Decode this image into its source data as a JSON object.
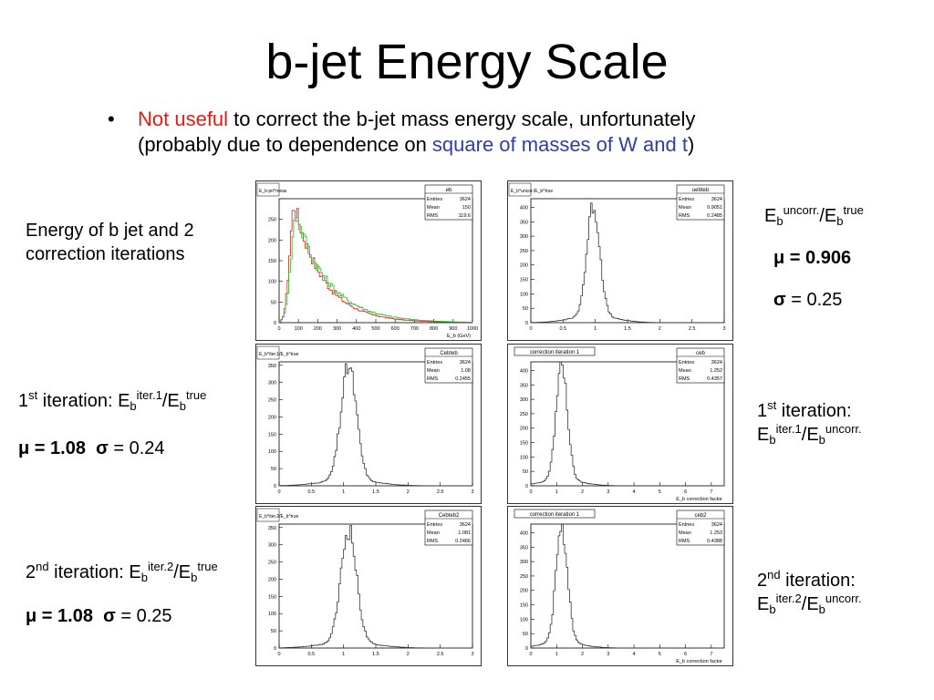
{
  "slide": {
    "title": "b-jet Energy Scale",
    "bullet": {
      "red": "Not useful",
      "part1": " to correct the b-jet mass energy scale, unfortunately",
      "part2": "(probably due to dependence on ",
      "blue": "square of masses of W and t",
      "part3": ")"
    },
    "colors": {
      "highlight_red": "#e8190f",
      "highlight_blue": "#2d3ea8"
    }
  },
  "left_labels": {
    "energy_desc": [
      "Energy of b jet and 2",
      "correction iterations"
    ],
    "iter1": {
      "ordinal": "1",
      "ord_sup": "st",
      "pre": " iteration: E",
      "sub1": "b",
      "sup1": "iter.1",
      "mid": "/E",
      "sub2": "b",
      "sup2": "true"
    },
    "iter1_stats": {
      "mu": "μ = 1.08",
      "sigma_sym": "σ",
      "sigma": " = 0.24"
    },
    "iter2": {
      "ordinal": "2",
      "ord_sup": "nd",
      "pre": " iteration: E",
      "sub1": "b",
      "sup1": "iter.2",
      "mid": "/E",
      "sub2": "b",
      "sup2": "true"
    },
    "iter2_stats": {
      "mu": "μ = 1.08",
      "sigma_sym": "σ",
      "sigma": " = 0.25"
    }
  },
  "right_labels": {
    "ratio": {
      "e": "E",
      "sub1": "b",
      "sup1": "uncorr.",
      "mid": "/E",
      "sub2": "b",
      "sup2": "true"
    },
    "mu": "μ = 0.906",
    "sigma_sym": "σ",
    "sigma": " = 0.25",
    "iter1": {
      "line1_ord": "1",
      "line1_sup": "st",
      "line1_rest": " iteration:",
      "e": "E",
      "sub1": "b",
      "sup1": "iter.1",
      "mid": "/E",
      "sub2": "b",
      "sup2": "uncorr."
    },
    "iter2": {
      "line1_ord": "2",
      "line1_sup": "nd",
      "line1_rest": " iteration:",
      "e": "E",
      "sub1": "b",
      "sup1": "iter.2",
      "mid": "/E",
      "sub2": "b",
      "sup2": "uncorr."
    }
  },
  "chart_data": [
    {
      "type": "histogram",
      "id": "eb",
      "stats": {
        "name": "eb",
        "entries": "3624",
        "mean": "150",
        "rms": "119.6"
      },
      "corner_label": "E_b-jet^meas",
      "xlabel": "E_b (GeV)",
      "x_ticks": [
        0,
        100,
        200,
        300,
        400,
        500,
        600,
        700,
        800,
        900,
        1000
      ],
      "y_ticks": [
        0,
        50,
        100,
        150,
        200,
        250
      ],
      "xlim": [
        0,
        1000
      ],
      "ylim": [
        0,
        300
      ],
      "series": [
        {
          "color": "#cc2222",
          "peak_x": 80,
          "peak_y": 285,
          "width_left": 35,
          "decay": 150
        },
        {
          "color": "#22bb22",
          "peak_x": 90,
          "peak_y": 260,
          "width_left": 40,
          "decay": 170
        }
      ]
    },
    {
      "type": "histogram",
      "id": "uebteb",
      "stats": {
        "name": "uebteb",
        "entries": "3624",
        "mean": "0.9051",
        "rms": "0.2485"
      },
      "corner_label": "E_b^uncor./E_b^true",
      "xlabel": "",
      "x_ticks": [
        0,
        0.5,
        1,
        1.5,
        2,
        2.5,
        3
      ],
      "y_ticks": [
        0,
        50,
        100,
        150,
        200,
        250,
        300,
        350,
        400
      ],
      "xlim": [
        0,
        3
      ],
      "ylim": [
        0,
        430
      ],
      "series": [
        {
          "color": "#333333",
          "mean": 0.97,
          "sigma": 0.1,
          "peak_y": 385,
          "tail": 0.06
        }
      ]
    },
    {
      "type": "histogram",
      "id": "cebteb",
      "stats": {
        "name": "Cebteb",
        "entries": "3624",
        "mean": "1.08",
        "rms": "0.2455"
      },
      "corner_label": "E_b^iter.1/E_b^true",
      "xlabel": "",
      "x_ticks": [
        0,
        0.5,
        1,
        1.5,
        2,
        2.5,
        3
      ],
      "y_ticks": [
        0,
        50,
        100,
        150,
        200,
        250,
        300,
        350
      ],
      "xlim": [
        0,
        3
      ],
      "ylim": [
        0,
        360
      ],
      "series": [
        {
          "color": "#333333",
          "mean": 1.08,
          "sigma": 0.12,
          "peak_y": 330,
          "tail": 0.05
        }
      ]
    },
    {
      "type": "histogram",
      "id": "ceb",
      "title": "correction iteration 1",
      "stats": {
        "name": "ceb",
        "entries": "3624",
        "mean": "1.252",
        "rms": "0.4357"
      },
      "xlabel": "E_b correction factor",
      "x_ticks": [
        0,
        1,
        2,
        3,
        4,
        5,
        6,
        7
      ],
      "y_ticks": [
        0,
        50,
        100,
        150,
        200,
        250,
        300,
        350,
        400
      ],
      "xlim": [
        0,
        7.5
      ],
      "ylim": [
        0,
        430
      ],
      "series": [
        {
          "color": "#333333",
          "mean": 1.2,
          "sigma": 0.22,
          "peak_y": 400,
          "tail": 0.05
        }
      ]
    },
    {
      "type": "histogram",
      "id": "cebteb2",
      "stats": {
        "name": "Cebteb2",
        "entries": "3624",
        "mean": "1.081",
        "rms": "0.2466"
      },
      "corner_label": "E_b^iter.2/E_b^true",
      "xlabel": "",
      "x_ticks": [
        0,
        0.5,
        1,
        1.5,
        2,
        2.5,
        3
      ],
      "y_ticks": [
        0,
        50,
        100,
        150,
        200,
        250,
        300,
        350
      ],
      "xlim": [
        0,
        3
      ],
      "ylim": [
        0,
        360
      ],
      "series": [
        {
          "color": "#333333",
          "mean": 1.08,
          "sigma": 0.12,
          "peak_y": 330,
          "tail": 0.05
        }
      ]
    },
    {
      "type": "histogram",
      "id": "ceb2",
      "title": "correction iteration 1",
      "stats": {
        "name": "ceb2",
        "entries": "3624",
        "mean": "1.253",
        "rms": "0.4388"
      },
      "xlabel": "E_b correction factor",
      "x_ticks": [
        0,
        1,
        2,
        3,
        4,
        5,
        6,
        7
      ],
      "y_ticks": [
        0,
        50,
        100,
        150,
        200,
        250,
        300,
        350,
        400
      ],
      "xlim": [
        0,
        7.5
      ],
      "ylim": [
        0,
        430
      ],
      "series": [
        {
          "color": "#333333",
          "mean": 1.2,
          "sigma": 0.22,
          "peak_y": 400,
          "tail": 0.05
        }
      ]
    }
  ]
}
